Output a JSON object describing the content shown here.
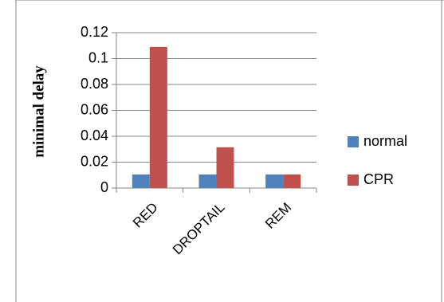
{
  "chart_data": {
    "type": "bar",
    "title": "",
    "xlabel": "",
    "ylabel": "minimal delay",
    "categories": [
      "RED",
      "DROPTAIL",
      "REM"
    ],
    "series": [
      {
        "name": "normal",
        "color": "#4F81BD",
        "values": [
          0.0105,
          0.0105,
          0.0105
        ]
      },
      {
        "name": "CPR",
        "color": "#C0504D",
        "values": [
          0.109,
          0.0315,
          0.0105
        ]
      }
    ],
    "ylim": [
      0,
      0.12
    ],
    "yticks": [
      "0",
      "0.02",
      "0.04",
      "0.06",
      "0.08",
      "0.1",
      "0.12"
    ],
    "grid": true,
    "legend_position": "right"
  }
}
